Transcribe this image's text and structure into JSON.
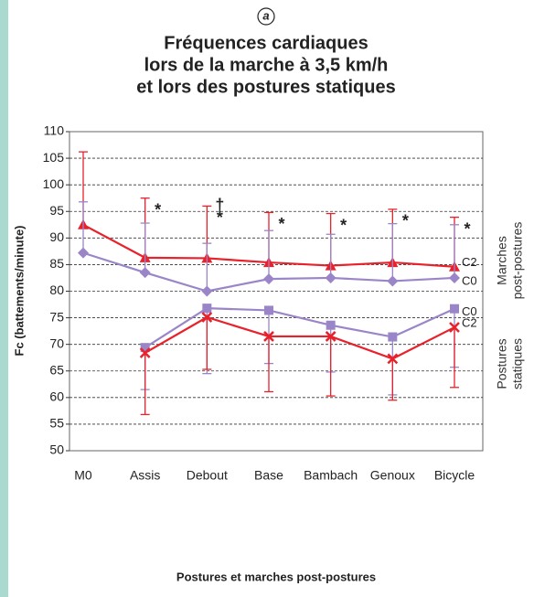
{
  "chart_data": {
    "type": "line",
    "panel": "a",
    "title": [
      "Fréquences cardiaques",
      "lors de la marche à 3,5 km/h",
      "et lors des postures statiques"
    ],
    "x_label": "Postures et marches post-postures",
    "y_label": "Fc (battements/minute)",
    "categories": [
      "M0",
      "Assis",
      "Debout",
      "Base",
      "Bambach",
      "Genoux",
      "Bicycle"
    ],
    "ylim": [
      50,
      110
    ],
    "yticks": [
      50,
      55,
      60,
      65,
      70,
      75,
      80,
      85,
      90,
      95,
      100,
      105,
      110
    ],
    "grid": true,
    "series": [
      {
        "name": "C2",
        "group": 0,
        "color": "#e8212b",
        "marker": "triangle",
        "error_direction": "up",
        "values": [
          92.5,
          86.3,
          86.2,
          85.4,
          84.8,
          85.4,
          84.6
        ],
        "errors": [
          13.7,
          11.2,
          9.8,
          9.4,
          9.8,
          10,
          9.3
        ]
      },
      {
        "name": "C0",
        "group": 0,
        "color": "#9b85c9",
        "marker": "diamond",
        "error_direction": "up",
        "values": [
          87.2,
          83.5,
          80,
          82.3,
          82.5,
          81.9,
          82.5
        ],
        "errors": [
          9.6,
          9.3,
          9,
          9.1,
          8.2,
          10.8,
          10
        ]
      },
      {
        "name": "C0",
        "group": 1,
        "color": "#9b85c9",
        "marker": "square",
        "error_direction": "down",
        "values": [
          null,
          69.4,
          76.8,
          76.4,
          73.6,
          71.4,
          76.7
        ],
        "errors": [
          null,
          7.9,
          12.3,
          10,
          8.8,
          10.9,
          11
        ]
      },
      {
        "name": "C2",
        "group": 1,
        "color": "#e8212b",
        "marker": "cross",
        "error_direction": "down",
        "values": [
          null,
          68.4,
          75.1,
          71.5,
          71.5,
          67.3,
          73.2
        ],
        "errors": [
          null,
          11.6,
          9.8,
          10.4,
          11.2,
          7.8,
          11.3
        ]
      }
    ],
    "groups": [
      [
        "Marches",
        "post-postures"
      ],
      [
        "Postures",
        "statiques"
      ]
    ],
    "annotations": [
      {
        "category": 1,
        "text": "*"
      },
      {
        "category": 2,
        "text": "*"
      },
      {
        "category": 2,
        "text": "†"
      },
      {
        "category": 3,
        "text": "*"
      },
      {
        "category": 4,
        "text": "*"
      },
      {
        "category": 5,
        "text": "*"
      },
      {
        "category": 6,
        "text": "*"
      }
    ]
  }
}
